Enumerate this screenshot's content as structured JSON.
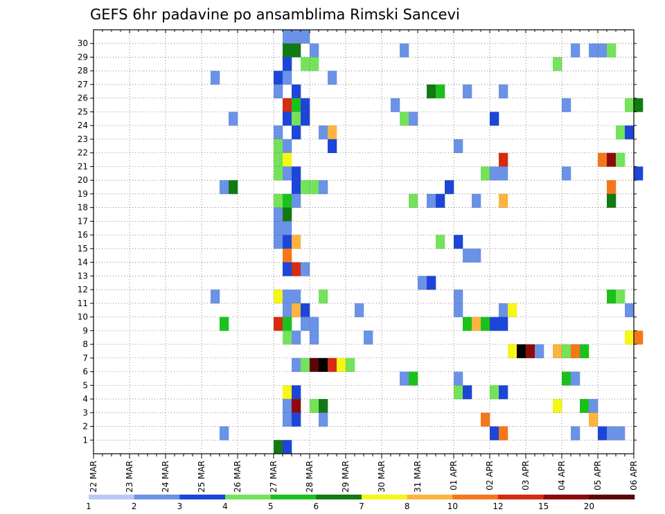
{
  "chart_data": {
    "type": "heatmap",
    "title": "GEFS 6hr padavine po ansamblima Rimski Sancevi",
    "x_tick_labels": [
      "22 MAR",
      "23 MAR",
      "24 MAR",
      "25 MAR",
      "26 MAR",
      "27 MAR",
      "28 MAR",
      "29 MAR",
      "30 MAR",
      "31 MAR",
      "01 APR",
      "02 APR",
      "03 APR",
      "04 APR",
      "05 APR",
      "06 APR"
    ],
    "y_tick_labels": [
      "1",
      "2",
      "3",
      "4",
      "5",
      "6",
      "7",
      "8",
      "9",
      "10",
      "11",
      "12",
      "13",
      "14",
      "15",
      "16",
      "17",
      "18",
      "19",
      "20",
      "21",
      "22",
      "23",
      "24",
      "25",
      "26",
      "27",
      "28",
      "29",
      "30"
    ],
    "time_steps_per_day": 4,
    "members": 30,
    "grid": true,
    "colorbar": {
      "labels": [
        "1",
        "2",
        "3",
        "4",
        "5",
        "6",
        "7",
        "8",
        "10",
        "12",
        "15",
        "20"
      ],
      "colors": [
        "#bccaf3",
        "#6a92e6",
        "#1d46d8",
        "#74e35b",
        "#1bc11b",
        "#137a13",
        "#f7f716",
        "#fbb43f",
        "#f5771c",
        "#d62b12",
        "#8e0b0b",
        "#5a0606"
      ]
    },
    "cells": [
      [
        21,
        30,
        1
      ],
      [
        22,
        30,
        1
      ],
      [
        23,
        30,
        1
      ],
      [
        21,
        29,
        5
      ],
      [
        22,
        29,
        5
      ],
      [
        24,
        29,
        1
      ],
      [
        34,
        29,
        1
      ],
      [
        53,
        29,
        1
      ],
      [
        55,
        29,
        1
      ],
      [
        56,
        29,
        1
      ],
      [
        57,
        29,
        3
      ],
      [
        21,
        28,
        2
      ],
      [
        23,
        28,
        3
      ],
      [
        24,
        28,
        3
      ],
      [
        51,
        28,
        3
      ],
      [
        20,
        27,
        2
      ],
      [
        21,
        27,
        1
      ],
      [
        13,
        27,
        1
      ],
      [
        26,
        27,
        1
      ],
      [
        20,
        26,
        1
      ],
      [
        22,
        26,
        2
      ],
      [
        37,
        26,
        5
      ],
      [
        38,
        26,
        4
      ],
      [
        41,
        26,
        1
      ],
      [
        45,
        26,
        1
      ],
      [
        21,
        25,
        9
      ],
      [
        22,
        25,
        4
      ],
      [
        23,
        25,
        2
      ],
      [
        33,
        25,
        1
      ],
      [
        52,
        25,
        1
      ],
      [
        59,
        25,
        3
      ],
      [
        60,
        25,
        5
      ],
      [
        21,
        24,
        2
      ],
      [
        22,
        24,
        3
      ],
      [
        23,
        24,
        2
      ],
      [
        15,
        24,
        1
      ],
      [
        34,
        24,
        3
      ],
      [
        35,
        24,
        1
      ],
      [
        44,
        24,
        2
      ],
      [
        20,
        23,
        1
      ],
      [
        22,
        23,
        2
      ],
      [
        25,
        23,
        1
      ],
      [
        26,
        23,
        7
      ],
      [
        58,
        23,
        3
      ],
      [
        59,
        23,
        2
      ],
      [
        20,
        22,
        3
      ],
      [
        21,
        22,
        1
      ],
      [
        26,
        22,
        2
      ],
      [
        40,
        22,
        1
      ],
      [
        20,
        21,
        3
      ],
      [
        21,
        21,
        6
      ],
      [
        45,
        21,
        9
      ],
      [
        56,
        21,
        8
      ],
      [
        57,
        21,
        10
      ],
      [
        58,
        21,
        3
      ],
      [
        20,
        20,
        3
      ],
      [
        21,
        20,
        1
      ],
      [
        22,
        20,
        2
      ],
      [
        43,
        20,
        3
      ],
      [
        44,
        20,
        1
      ],
      [
        45,
        20,
        1
      ],
      [
        52,
        20,
        1
      ],
      [
        60,
        20,
        2
      ],
      [
        14,
        19,
        1
      ],
      [
        15,
        19,
        5
      ],
      [
        22,
        19,
        2
      ],
      [
        23,
        19,
        3
      ],
      [
        24,
        19,
        3
      ],
      [
        25,
        19,
        1
      ],
      [
        39,
        19,
        2
      ],
      [
        57,
        19,
        8
      ],
      [
        20,
        18,
        3
      ],
      [
        21,
        18,
        4
      ],
      [
        22,
        18,
        1
      ],
      [
        35,
        18,
        3
      ],
      [
        37,
        18,
        1
      ],
      [
        38,
        18,
        2
      ],
      [
        42,
        18,
        1
      ],
      [
        45,
        18,
        7
      ],
      [
        57,
        18,
        5
      ],
      [
        20,
        17,
        1
      ],
      [
        21,
        17,
        5
      ],
      [
        20,
        16,
        1
      ],
      [
        21,
        16,
        1
      ],
      [
        20,
        15,
        1
      ],
      [
        21,
        15,
        2
      ],
      [
        22,
        15,
        7
      ],
      [
        38,
        15,
        3
      ],
      [
        40,
        15,
        2
      ],
      [
        41,
        14,
        1
      ],
      [
        42,
        14,
        1
      ],
      [
        21,
        14,
        8
      ],
      [
        21,
        13,
        2
      ],
      [
        22,
        13,
        9
      ],
      [
        23,
        13,
        1
      ],
      [
        36,
        12,
        1
      ],
      [
        37,
        12,
        2
      ],
      [
        13,
        11,
        1
      ],
      [
        20,
        11,
        6
      ],
      [
        21,
        11,
        1
      ],
      [
        22,
        11,
        1
      ],
      [
        25,
        11,
        3
      ],
      [
        40,
        11,
        1
      ],
      [
        57,
        11,
        4
      ],
      [
        58,
        11,
        3
      ],
      [
        21,
        10,
        1
      ],
      [
        22,
        10,
        7
      ],
      [
        23,
        10,
        2
      ],
      [
        29,
        10,
        1
      ],
      [
        40,
        10,
        1
      ],
      [
        45,
        10,
        1
      ],
      [
        46,
        10,
        6
      ],
      [
        59,
        10,
        1
      ],
      [
        14,
        9,
        4
      ],
      [
        20,
        9,
        9
      ],
      [
        21,
        9,
        4
      ],
      [
        23,
        9,
        1
      ],
      [
        24,
        9,
        1
      ],
      [
        41,
        9,
        4
      ],
      [
        42,
        9,
        7
      ],
      [
        43,
        9,
        4
      ],
      [
        44,
        9,
        2
      ],
      [
        45,
        9,
        2
      ],
      [
        21,
        8,
        3
      ],
      [
        22,
        8,
        1
      ],
      [
        24,
        8,
        1
      ],
      [
        30,
        8,
        1
      ],
      [
        59,
        8,
        6
      ],
      [
        60,
        8,
        8
      ],
      [
        46,
        7,
        6
      ],
      [
        47,
        7,
        12
      ],
      [
        48,
        7,
        10
      ],
      [
        49,
        7,
        1
      ],
      [
        51,
        7,
        7
      ],
      [
        52,
        7,
        3
      ],
      [
        53,
        7,
        8
      ],
      [
        54,
        7,
        4
      ],
      [
        22,
        6,
        1
      ],
      [
        23,
        6,
        3
      ],
      [
        24,
        6,
        11
      ],
      [
        25,
        6,
        12
      ],
      [
        26,
        6,
        9
      ],
      [
        27,
        6,
        6
      ],
      [
        28,
        6,
        3
      ],
      [
        34,
        5,
        1
      ],
      [
        35,
        5,
        4
      ],
      [
        40,
        5,
        1
      ],
      [
        52,
        5,
        4
      ],
      [
        53,
        5,
        1
      ],
      [
        21,
        4,
        6
      ],
      [
        22,
        4,
        2
      ],
      [
        40,
        4,
        3
      ],
      [
        41,
        4,
        2
      ],
      [
        44,
        4,
        3
      ],
      [
        45,
        4,
        2
      ],
      [
        21,
        3,
        1
      ],
      [
        22,
        3,
        10
      ],
      [
        24,
        3,
        3
      ],
      [
        25,
        3,
        5
      ],
      [
        51,
        3,
        6
      ],
      [
        54,
        3,
        4
      ],
      [
        55,
        3,
        1
      ],
      [
        21,
        2,
        1
      ],
      [
        22,
        2,
        2
      ],
      [
        25,
        2,
        1
      ],
      [
        43,
        2,
        8
      ],
      [
        55,
        2,
        7
      ],
      [
        14,
        1,
        1
      ],
      [
        44,
        1,
        2
      ],
      [
        45,
        1,
        8
      ],
      [
        53,
        1,
        1
      ],
      [
        56,
        1,
        2
      ],
      [
        57,
        1,
        1
      ],
      [
        58,
        1,
        1
      ],
      [
        20,
        0,
        5
      ],
      [
        21,
        0,
        2
      ]
    ]
  }
}
